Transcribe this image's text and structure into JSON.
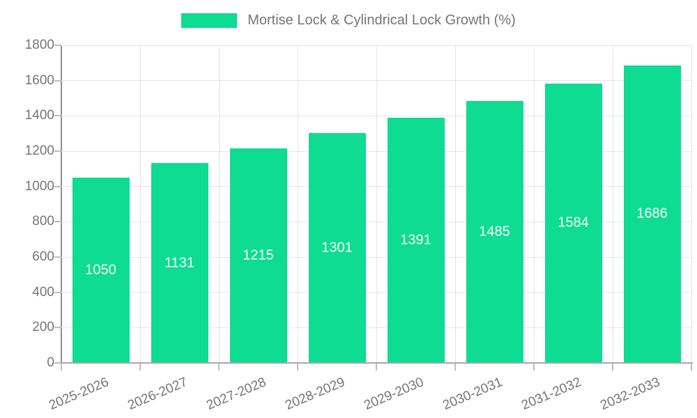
{
  "legend": {
    "label": "Mortise Lock & Cylindrical Lock Growth (%)"
  },
  "chart_data": {
    "type": "bar",
    "title": "Mortise Lock & Cylindrical Lock Growth (%)",
    "categories": [
      "2025-2026",
      "2026-2027",
      "2027-2028",
      "2028-2029",
      "2029-2030",
      "2030-2031",
      "2031-2032",
      "2032-2033"
    ],
    "values": [
      1050,
      1131,
      1215,
      1301,
      1391,
      1485,
      1584,
      1686
    ],
    "value_labels": [
      "1050",
      "1131",
      "1215",
      "1301",
      "1391",
      "1485",
      "1584",
      "1686"
    ],
    "xlabel": "",
    "ylabel": "",
    "ylim": [
      0,
      1800
    ],
    "ytick_step": 200,
    "yticks": [
      "0",
      "200",
      "400",
      "600",
      "800",
      "1000",
      "1200",
      "1400",
      "1600",
      "1800"
    ],
    "grid": true,
    "legend_position": "top",
    "bar_color": "#0ddc92",
    "value_label_color": "#ffffff",
    "axis_label_color": "#757575",
    "gridline_color": "#e5e5e5"
  }
}
